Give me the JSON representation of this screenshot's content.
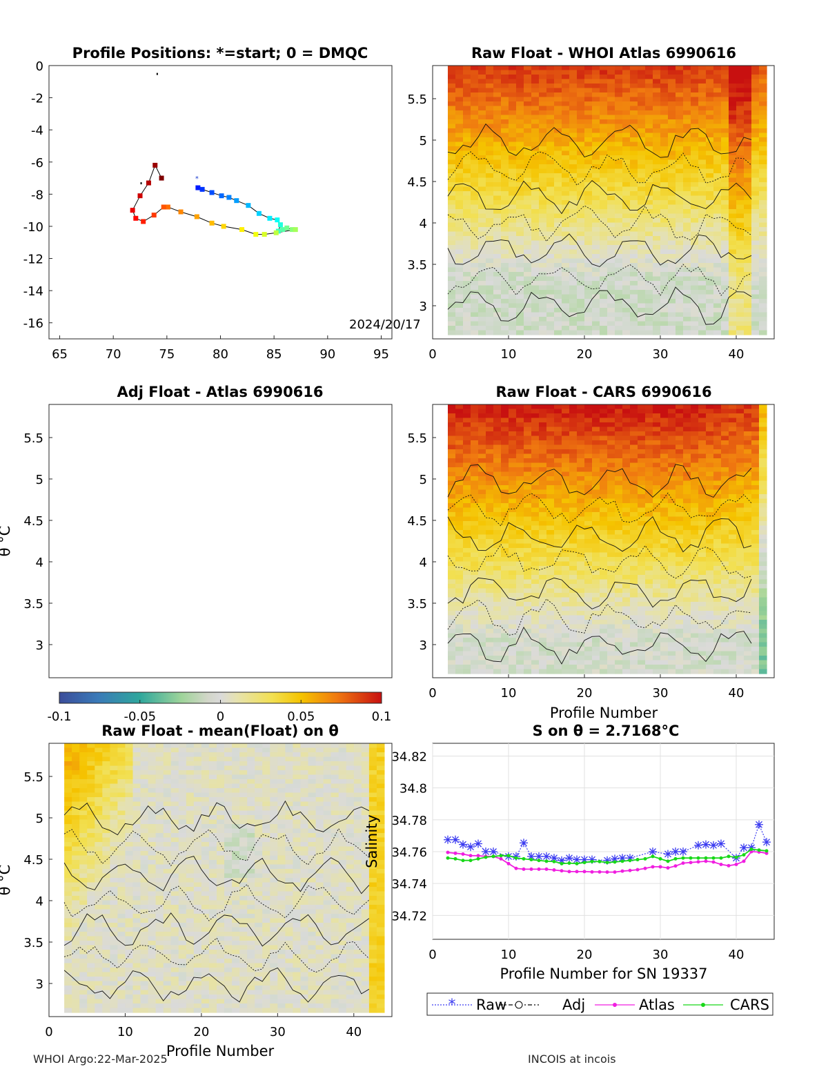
{
  "chart_data": [
    {
      "panel": "map",
      "type": "scatter",
      "title": "Profile Positions: *=start; 0 = DMQC",
      "xlim": [
        64,
        96
      ],
      "ylim": [
        -17,
        0
      ],
      "xticks": [
        65,
        70,
        75,
        80,
        85,
        90,
        95
      ],
      "yticks": [
        0,
        -2,
        -4,
        -6,
        -8,
        -10,
        -12,
        -14,
        -16
      ],
      "annotation": "2024/20/17",
      "track": [
        [
          77.9,
          -7.6
        ],
        [
          78.3,
          -7.7
        ],
        [
          79.2,
          -7.9
        ],
        [
          80.1,
          -8.1
        ],
        [
          80.8,
          -8.2
        ],
        [
          81.5,
          -8.4
        ],
        [
          82.6,
          -8.7
        ],
        [
          83.6,
          -9.2
        ],
        [
          84.6,
          -9.5
        ],
        [
          85.3,
          -9.6
        ],
        [
          85.6,
          -9.9
        ],
        [
          85.4,
          -10.3
        ],
        [
          85.8,
          -10.2
        ],
        [
          86.2,
          -10.1
        ],
        [
          86.7,
          -10.2
        ],
        [
          87.0,
          -10.2
        ],
        [
          85.2,
          -10.4
        ],
        [
          84.1,
          -10.5
        ],
        [
          83.3,
          -10.5
        ],
        [
          82.0,
          -10.2
        ],
        [
          80.3,
          -10.0
        ],
        [
          79.2,
          -9.8
        ],
        [
          77.8,
          -9.4
        ],
        [
          76.3,
          -9.1
        ],
        [
          75.1,
          -8.8
        ],
        [
          74.7,
          -8.8
        ],
        [
          73.8,
          -9.3
        ],
        [
          72.8,
          -9.7
        ],
        [
          72.1,
          -9.5
        ],
        [
          71.8,
          -9.0
        ],
        [
          72.5,
          -8.1
        ],
        [
          73.3,
          -7.3
        ],
        [
          73.9,
          -6.2
        ],
        [
          74.5,
          -7.0
        ]
      ],
      "markers": [
        [
          72.6,
          -7.3
        ],
        [
          74.1,
          -0.5
        ]
      ]
    },
    {
      "panel": "contour",
      "type": "heatmap",
      "title": "Raw Float - WHOI Atlas  6990616",
      "xlim": [
        0,
        45
      ],
      "ylim": [
        2.6,
        5.9
      ],
      "xticks": [
        0,
        10,
        20,
        30,
        40
      ],
      "yticks": [
        3,
        3.5,
        4,
        4.5,
        5,
        5.5
      ],
      "ylabel": "",
      "xlabel": ""
    },
    {
      "panel": "contour",
      "type": "heatmap",
      "title": "Adj Float - Atlas  6990616",
      "xlim": [
        0,
        45
      ],
      "ylim": [
        2.6,
        5.9
      ],
      "yticks": [
        3,
        3.5,
        4,
        4.5,
        5,
        5.5
      ],
      "ylabel": "θ °C"
    },
    {
      "panel": "contour",
      "type": "heatmap",
      "title": "Raw Float - CARS  6990616",
      "xlim": [
        0,
        45
      ],
      "ylim": [
        2.6,
        5.9
      ],
      "xticks": [
        0,
        10,
        20,
        30,
        40
      ],
      "yticks": [
        3,
        3.5,
        4,
        4.5,
        5,
        5.5
      ],
      "xlabel": "Profile Number"
    },
    {
      "panel": "colorbar",
      "type": "heatmap",
      "range": [
        -0.1,
        0.1
      ],
      "ticks": [
        "-0.1",
        "-0.05",
        "0",
        "0.05",
        "0.1"
      ]
    },
    {
      "panel": "contour",
      "type": "heatmap",
      "title": "Raw Float - mean(Float) on θ",
      "xlim": [
        0,
        45
      ],
      "ylim": [
        2.6,
        5.9
      ],
      "xticks": [
        0,
        10,
        20,
        30,
        40
      ],
      "yticks": [
        3,
        3.5,
        4,
        4.5,
        5,
        5.5
      ],
      "ylabel": "θ °C",
      "xlabel": "Profile Number"
    },
    {
      "panel": "line",
      "type": "line",
      "title": "S on θ = 2.7168°C",
      "xlabel": "Profile Number for SN 19337",
      "ylabel": "Salinity",
      "xlim": [
        0,
        45
      ],
      "ylim": [
        34.705,
        34.828
      ],
      "xticks": [
        0,
        10,
        20,
        30,
        40
      ],
      "yticks": [
        34.72,
        34.74,
        34.76,
        34.78,
        34.8,
        34.82
      ],
      "grid": true,
      "legend": "bottom",
      "series": [
        {
          "name": "Raw",
          "color": "#3a3af0",
          "x": [
            2,
            3,
            4,
            5,
            6,
            7,
            8,
            10,
            11,
            12,
            13,
            14,
            15,
            16,
            17,
            18,
            19,
            20,
            21,
            23,
            24,
            25,
            26,
            29,
            31,
            32,
            33,
            35,
            36,
            37,
            38,
            40,
            41,
            42,
            43,
            44
          ],
          "y": [
            34.7675,
            34.7675,
            34.7645,
            34.763,
            34.765,
            34.76,
            34.76,
            34.757,
            34.757,
            34.7655,
            34.757,
            34.757,
            34.757,
            34.756,
            34.7545,
            34.756,
            34.755,
            34.755,
            34.755,
            34.7545,
            34.7555,
            34.756,
            34.756,
            34.76,
            34.7585,
            34.76,
            34.76,
            34.764,
            34.7645,
            34.764,
            34.765,
            34.756,
            34.7625,
            34.7625,
            34.777,
            34.766
          ]
        },
        {
          "name": "Adj",
          "color": "#000000",
          "x": [],
          "y": []
        },
        {
          "name": "Atlas",
          "color": "#f01ee0",
          "x": [
            2,
            3,
            4,
            5,
            6,
            7,
            8,
            9,
            10,
            11,
            12,
            13,
            14,
            15,
            16,
            17,
            18,
            19,
            20,
            21,
            22,
            23,
            24,
            25,
            26,
            27,
            28,
            29,
            30,
            31,
            32,
            33,
            34,
            35,
            36,
            37,
            38,
            39,
            40,
            41,
            42,
            43,
            44
          ],
          "y": [
            34.7595,
            34.759,
            34.7585,
            34.7575,
            34.7575,
            34.757,
            34.757,
            34.7555,
            34.7525,
            34.7495,
            34.749,
            34.749,
            34.749,
            34.749,
            34.7485,
            34.748,
            34.7475,
            34.7475,
            34.7475,
            34.7473,
            34.7473,
            34.7472,
            34.7472,
            34.7478,
            34.7482,
            34.7487,
            34.7495,
            34.7505,
            34.7505,
            34.7498,
            34.751,
            34.7528,
            34.7532,
            34.7536,
            34.754,
            34.7535,
            34.752,
            34.7512,
            34.752,
            34.754,
            34.76,
            34.7598,
            34.759
          ]
        },
        {
          "name": "CARS",
          "color": "#18d818",
          "x": [
            2,
            3,
            4,
            5,
            6,
            7,
            8,
            9,
            10,
            11,
            12,
            13,
            14,
            15,
            16,
            17,
            18,
            19,
            20,
            21,
            22,
            23,
            24,
            25,
            26,
            27,
            28,
            29,
            30,
            31,
            32,
            33,
            34,
            35,
            36,
            37,
            38,
            39,
            40,
            41,
            42,
            43,
            44
          ],
          "y": [
            34.756,
            34.7555,
            34.7545,
            34.7545,
            34.7555,
            34.7565,
            34.757,
            34.7575,
            34.7575,
            34.756,
            34.7555,
            34.755,
            34.7545,
            34.754,
            34.7538,
            34.7525,
            34.7528,
            34.7525,
            34.7532,
            34.7538,
            34.7538,
            34.7532,
            34.7535,
            34.754,
            34.7545,
            34.755,
            34.7555,
            34.757,
            34.7555,
            34.754,
            34.7555,
            34.756,
            34.756,
            34.756,
            34.756,
            34.756,
            34.756,
            34.757,
            34.7565,
            34.758,
            34.7615,
            34.761,
            34.7605
          ]
        }
      ]
    }
  ],
  "footer": {
    "left": "WHOI Argo:22-Mar-2025",
    "right": "INCOIS at incois"
  }
}
